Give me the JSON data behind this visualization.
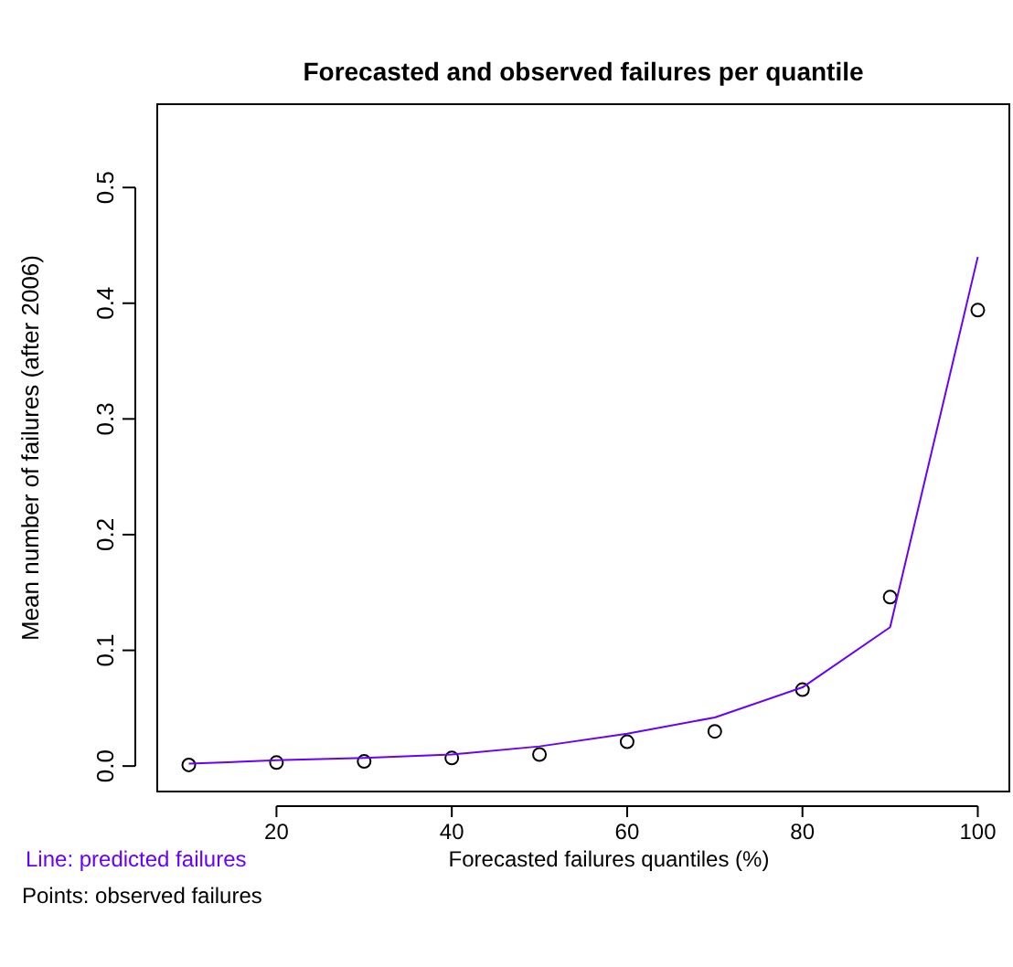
{
  "chart_data": {
    "type": "line",
    "title": "Forecasted and observed failures per quantile",
    "xlabel": "Forecasted failures quantiles (%)",
    "ylabel": "Mean number of failures (after 2006)",
    "x": [
      10,
      20,
      30,
      40,
      50,
      60,
      70,
      80,
      90,
      100
    ],
    "series": [
      {
        "type": "scatter",
        "color": "#000000",
        "marker": "circle",
        "values": [
          0.001,
          0.003,
          0.004,
          0.007,
          0.01,
          0.021,
          0.03,
          0.066,
          0.146,
          0.394
        ]
      },
      {
        "type": "line",
        "color": "#6600ff",
        "marker": "none",
        "values": [
          0.002,
          0.005,
          0.007,
          0.01,
          0.017,
          0.028,
          0.042,
          0.068,
          0.12,
          0.44
        ]
      }
    ],
    "xlim": [
      6.4,
      103.6
    ],
    "ylim": [
      -0.022,
      0.572
    ],
    "xticks": [
      20,
      40,
      60,
      80,
      100
    ],
    "yticks": [
      {
        "value": 0,
        "label": "0.0"
      },
      0.1,
      0.2,
      0.3,
      0.4,
      0.5
    ],
    "annotations": [
      "Line: predicted failures",
      "Points: observed failures"
    ],
    "grid": false
  }
}
